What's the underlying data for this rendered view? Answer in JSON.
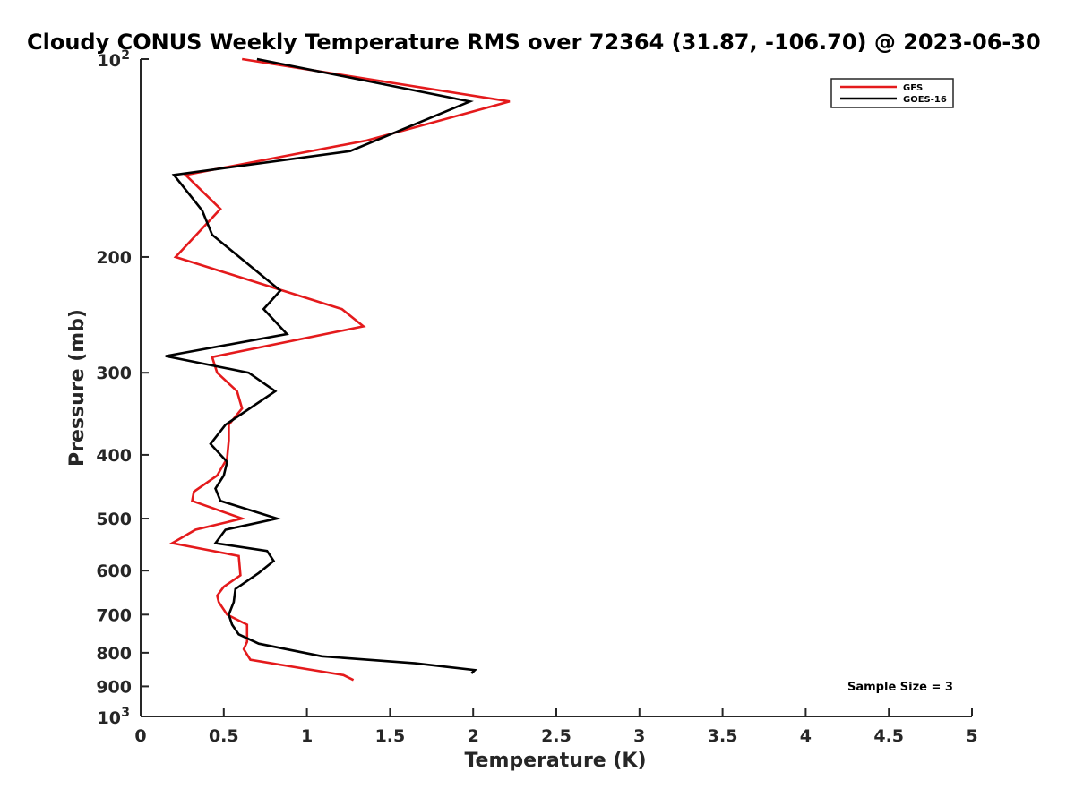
{
  "chart_data": {
    "type": "line",
    "title": "Cloudy CONUS Weekly Temperature RMS over 72364 (31.87, -106.70) @ 2023-06-30",
    "xlabel": "Temperature (K)",
    "ylabel": "Pressure (mb)",
    "xlim": [
      0,
      5
    ],
    "ylim": [
      1000,
      100
    ],
    "y_scale": "log",
    "y_reversed": true,
    "x_ticks": [
      "0",
      "0.5",
      "1",
      "1.5",
      "2",
      "2.5",
      "3",
      "3.5",
      "4",
      "4.5",
      "5"
    ],
    "y_ticks": [
      {
        "value": 100,
        "label": "10",
        "sup": "2"
      },
      {
        "value": 200,
        "label": "200"
      },
      {
        "value": 300,
        "label": "300"
      },
      {
        "value": 400,
        "label": "400"
      },
      {
        "value": 500,
        "label": "500"
      },
      {
        "value": 600,
        "label": "600"
      },
      {
        "value": 700,
        "label": "700"
      },
      {
        "value": 800,
        "label": "800"
      },
      {
        "value": 900,
        "label": "900"
      },
      {
        "value": 1000,
        "label": "10",
        "sup": "3"
      }
    ],
    "grid": false,
    "legend_position": "top-right",
    "annotation": "Sample Size = 3",
    "series": [
      {
        "name": "GFS",
        "color": "#e41a1c",
        "points": [
          [
            0.61,
            100
          ],
          [
            2.22,
            116
          ],
          [
            1.36,
            133
          ],
          [
            0.27,
            150
          ],
          [
            0.48,
            169
          ],
          [
            0.21,
            200
          ],
          [
            1.21,
            240
          ],
          [
            1.34,
            255
          ],
          [
            0.43,
            284
          ],
          [
            0.46,
            300
          ],
          [
            0.58,
            320
          ],
          [
            0.61,
            340
          ],
          [
            0.53,
            360
          ],
          [
            0.53,
            380
          ],
          [
            0.52,
            405
          ],
          [
            0.46,
            430
          ],
          [
            0.32,
            455
          ],
          [
            0.31,
            470
          ],
          [
            0.61,
            500
          ],
          [
            0.33,
            520
          ],
          [
            0.19,
            545
          ],
          [
            0.59,
            570
          ],
          [
            0.6,
            610
          ],
          [
            0.5,
            635
          ],
          [
            0.46,
            655
          ],
          [
            0.47,
            670
          ],
          [
            0.52,
            700
          ],
          [
            0.64,
            725
          ],
          [
            0.64,
            770
          ],
          [
            0.62,
            790
          ],
          [
            0.66,
            820
          ],
          [
            0.91,
            840
          ],
          [
            1.22,
            865
          ],
          [
            1.28,
            880
          ]
        ]
      },
      {
        "name": "GOES-16",
        "color": "#000000",
        "points": [
          [
            0.7,
            100
          ],
          [
            1.98,
            116
          ],
          [
            1.26,
            138
          ],
          [
            0.2,
            150
          ],
          [
            0.37,
            170
          ],
          [
            0.43,
            185
          ],
          [
            0.84,
            225
          ],
          [
            0.74,
            240
          ],
          [
            0.88,
            262
          ],
          [
            0.15,
            283
          ],
          [
            0.65,
            300
          ],
          [
            0.81,
            320
          ],
          [
            0.51,
            360
          ],
          [
            0.42,
            385
          ],
          [
            0.52,
            410
          ],
          [
            0.5,
            430
          ],
          [
            0.45,
            450
          ],
          [
            0.48,
            470
          ],
          [
            0.82,
            500
          ],
          [
            0.51,
            520
          ],
          [
            0.45,
            545
          ],
          [
            0.76,
            560
          ],
          [
            0.8,
            580
          ],
          [
            0.71,
            605
          ],
          [
            0.57,
            640
          ],
          [
            0.56,
            670
          ],
          [
            0.53,
            700
          ],
          [
            0.55,
            725
          ],
          [
            0.59,
            750
          ],
          [
            0.71,
            775
          ],
          [
            1.09,
            810
          ],
          [
            1.65,
            830
          ],
          [
            2.01,
            850
          ],
          [
            1.99,
            860
          ]
        ]
      }
    ]
  }
}
